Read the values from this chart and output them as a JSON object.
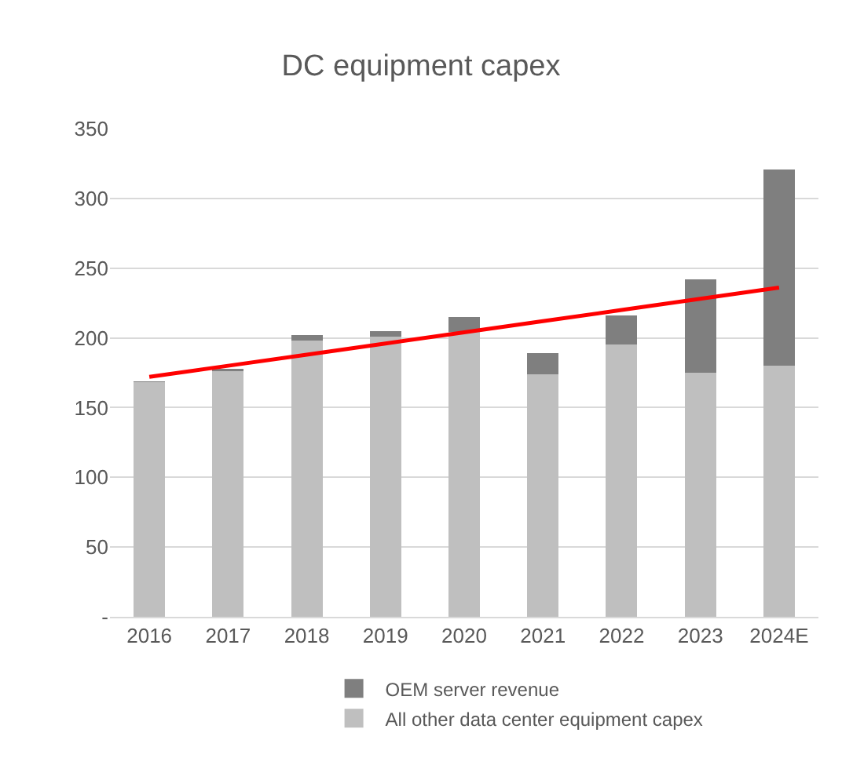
{
  "chart_data": {
    "type": "bar",
    "title": "DC equipment capex",
    "categories": [
      "2016",
      "2017",
      "2018",
      "2019",
      "2020",
      "2021",
      "2022",
      "2023",
      "2024E"
    ],
    "stacked": true,
    "series": [
      {
        "name": "All other data center equipment capex",
        "color": "#bfbfbf",
        "values": [
          168,
          176,
          198,
          201,
          204,
          174,
          195,
          175,
          180
        ]
      },
      {
        "name": "OEM server revenue",
        "color": "#7f7f7f",
        "values": [
          1,
          2,
          4,
          4,
          11,
          15,
          21,
          67,
          141
        ]
      },
      {
        "type": "line",
        "color": "#ff0000",
        "values": [
          172,
          180,
          188,
          196,
          204,
          212,
          220,
          228,
          236
        ]
      }
    ],
    "ylim": [
      0,
      350
    ],
    "yticks": [
      {
        "value": 0,
        "label": "-"
      },
      50,
      100,
      150,
      200,
      250,
      300,
      350
    ],
    "grid": "y",
    "legend": "bottom",
    "marker": "none",
    "line_style": "solid"
  }
}
